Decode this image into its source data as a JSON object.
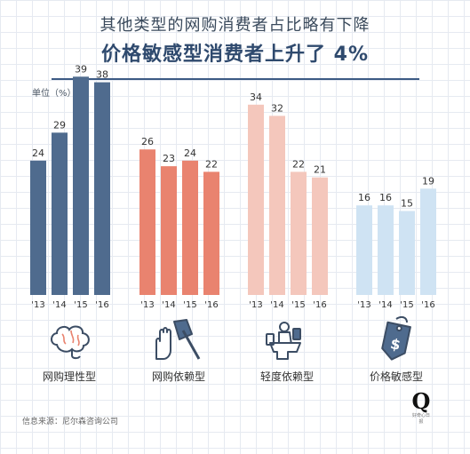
{
  "title": "其他类型的网购消费者占比略有下降",
  "subtitle": "价格敏感型消费者上升了 4%",
  "unit_label": "单位（%）",
  "source": "信息来源：尼尔森咨询公司",
  "logo": {
    "letter": "Q",
    "tagline": "好奇心日报"
  },
  "colors": {
    "rational": "#4f6b8e",
    "dependent": "#e9836f",
    "light": "#f4c7bc",
    "price": "#cfe3f3"
  },
  "chart_data": {
    "type": "bar",
    "title": "其他类型的网购消费者占比略有下降",
    "subtitle": "价格敏感型消费者上升了 4%",
    "ylabel": "单位（%）",
    "ylim": [
      0,
      40
    ],
    "groups": [
      {
        "name": "网购理性型",
        "icon": "brain-icon",
        "color": "#4f6b8e",
        "categories": [
          "'13",
          "'14",
          "'15",
          "'16"
        ],
        "values": [
          24,
          29,
          39,
          38
        ]
      },
      {
        "name": "网购依赖型",
        "icon": "hand-axe-icon",
        "color": "#e9836f",
        "categories": [
          "'13",
          "'14",
          "'15",
          "'16"
        ],
        "values": [
          26,
          23,
          24,
          22
        ]
      },
      {
        "name": "轻度依赖型",
        "icon": "person-toilet-phone-icon",
        "color": "#f4c7bc",
        "categories": [
          "'13",
          "'14",
          "'15",
          "'16"
        ],
        "values": [
          34,
          32,
          22,
          21
        ]
      },
      {
        "name": "价格敏感型",
        "icon": "price-tag-icon",
        "color": "#cfe3f3",
        "categories": [
          "'13",
          "'14",
          "'15",
          "'16"
        ],
        "values": [
          16,
          16,
          15,
          19
        ]
      }
    ]
  }
}
